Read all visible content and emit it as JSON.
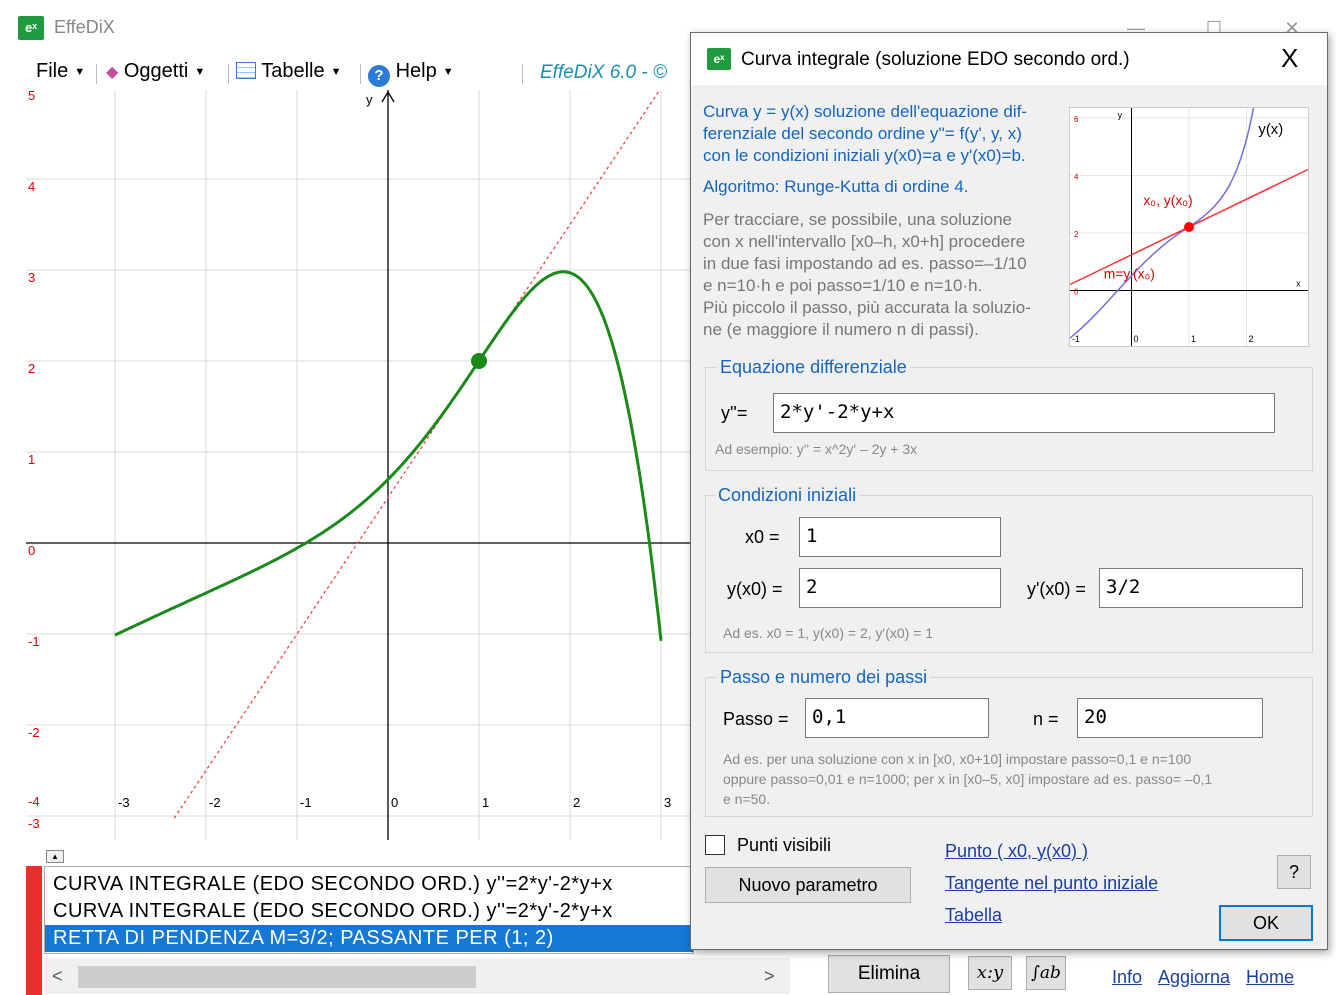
{
  "window": {
    "title": "EffeDiX",
    "logo": "eˣ",
    "controls": {
      "minimize": "—",
      "maximize": "☐",
      "close": "✕"
    }
  },
  "menubar": {
    "file": "File",
    "oggetti": "Oggetti",
    "tabelle": "Tabelle",
    "help": "Help",
    "version": "EffeDiX 6.0 - ©"
  },
  "graph": {
    "y_axis_label": "y",
    "left_ticks": [
      "5",
      "4",
      "3",
      "2",
      "1",
      "0",
      "-1",
      "-2",
      "-3",
      "-4"
    ],
    "x_ticks": [
      "-3",
      "-2",
      "-1",
      "0",
      "1",
      "2",
      "3"
    ],
    "initial_point": {
      "x": 1,
      "y": 2
    },
    "tangent_slope": 1.5,
    "curve_color": "#1a8a1a",
    "tangent_color": "#ff4040"
  },
  "object_list": {
    "rows": [
      "CURVA INTEGRALE (EDO SECONDO ORD.) y''=2*y'-2*y+x",
      "CURVA INTEGRALE (EDO SECONDO ORD.) y''=2*y'-2*y+x",
      "RETTA DI PENDENZA M=3/2; PASSANTE PER (1; 2)"
    ],
    "selected_index": 2,
    "scroll_left": "<",
    "scroll_right": ">",
    "collapse": "▲"
  },
  "bottom": {
    "elimina": "Elimina",
    "xy_icon": "x:y",
    "integral_icon": "∫ab",
    "links": [
      "Info",
      "Aggiorna",
      "Home"
    ]
  },
  "dialog": {
    "title": "Curva integrale (soluzione EDO secondo ord.)",
    "close": "X",
    "desc_lines": [
      "Curva y = y(x) soluzione dell'equazione dif-",
      "ferenziale del secondo ordine y''= f(y', y, x)",
      "con le condizioni iniziali y(x0)=a e y'(x0)=b."
    ],
    "algorithm": "Algoritmo: Runge-Kutta di ordine 4.",
    "instructions": [
      "Per tracciare, se possibile, una soluzione",
      "con x nell'intervallo [x0–h, x0+h] procedere",
      "in due fasi impostando ad es. passo=–1/10",
      "e n=10·h e poi passo=1/10 e n=10·h.",
      "Più piccolo il passo, più accurata la soluzio-",
      "ne (e maggiore il numero n di passi)."
    ],
    "mini_graph": {
      "curve_label": "y(x)",
      "point_label": "x₀, y(x₀)",
      "slope_label": "m=y'(x₀)",
      "y_label": "y",
      "y_ticks": [
        "6",
        "4",
        "2",
        "0"
      ],
      "x_ticks": [
        "-1",
        "0",
        "1",
        "2"
      ],
      "x_label": "x"
    },
    "equation": {
      "title": "Equazione differenziale",
      "label": "y''=",
      "value": "2*y'-2*y+x",
      "hint": "Ad esempio: y'' = x^2y' – 2y + 3x"
    },
    "initial_conditions": {
      "title": "Condizioni iniziali",
      "x0_label": "x0 =",
      "x0_value": "1",
      "yx0_label": "y(x0) =",
      "yx0_value": "2",
      "dyx0_label": "y'(x0) =",
      "dyx0_value": "3/2",
      "hint": "Ad es. x0 = 1, y(x0) = 2, y'(x0) = 1"
    },
    "step": {
      "title": "Passo e numero dei passi",
      "passo_label": "Passo =",
      "passo_value": "0,1",
      "n_label": "n =",
      "n_value": "20",
      "hint_lines": [
        "Ad es. per una soluzione con x in  [x0, x0+10] impostare passo=0,1 e n=100",
        "oppure passo=0,01 e n=1000; per x in [x0–5, x0] impostare ad es. passo= –0,1",
        "e n=50."
      ]
    },
    "punti_visibili": "Punti  visibili",
    "nuovo_parametro": "Nuovo parametro",
    "link_punto": "Punto ( x0, y(x0) )",
    "link_tangente": "Tangente nel punto iniziale",
    "link_tabella": "Tabella",
    "help_button": "?",
    "ok_button": "OK"
  }
}
